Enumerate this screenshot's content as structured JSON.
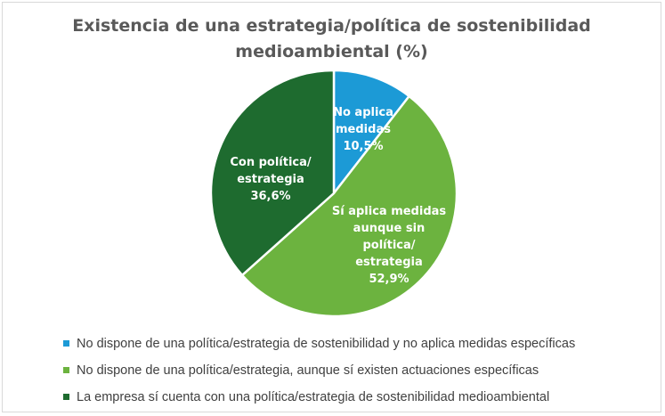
{
  "chart_data": {
    "type": "pie",
    "title": "Existencia de una estrategia/política de sostenibilidad\nmedioambiental (%)",
    "slices": [
      {
        "legend": "No dispone de una política/estrategia de sostenibilidad y no aplica medidas específicas",
        "label_lines": [
          "No aplica",
          "medidas",
          "10,5%"
        ],
        "value": 10.5,
        "color": "#1c9ad6"
      },
      {
        "legend": "No dispone de una política/estrategia, aunque sí existen actuaciones específicas",
        "label_lines": [
          "Sí aplica medidas",
          "aunque sin",
          "política/",
          "estrategia",
          "52,9%"
        ],
        "value": 52.9,
        "color": "#6cb33f"
      },
      {
        "legend": "La empresa sí cuenta con una política/estrategia de sostenibilidad medioambiental",
        "label_lines": [
          "Con política/",
          "estrategia",
          "36,6%"
        ],
        "value": 36.6,
        "color": "#1e6b2f"
      }
    ],
    "start_angle": "12 o'clock",
    "direction": "clockwise",
    "legend_position": "bottom"
  }
}
